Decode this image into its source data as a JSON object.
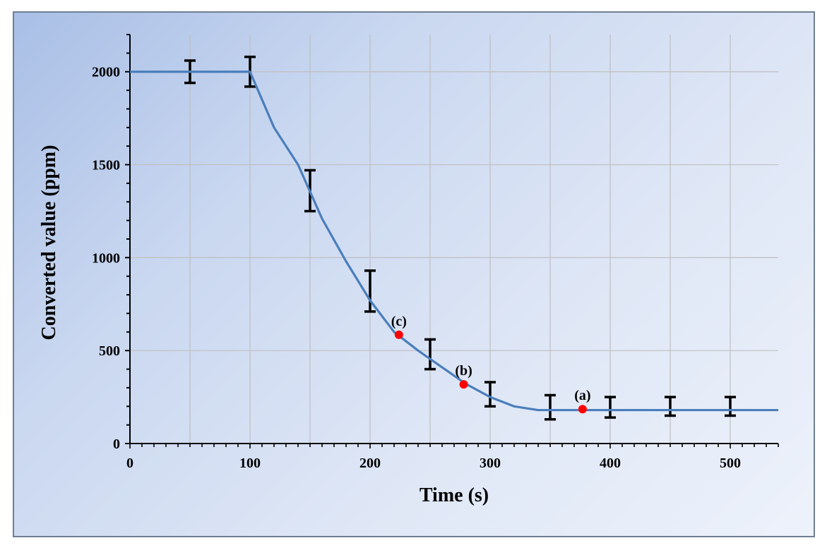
{
  "chart_data": {
    "type": "line",
    "xlabel": "Time (s)",
    "ylabel": "Converted value (ppm)",
    "xlim": [
      0,
      540
    ],
    "ylim": [
      0,
      2200
    ],
    "xticks": [
      0,
      100,
      200,
      300,
      400,
      500
    ],
    "yticks": [
      0,
      500,
      1000,
      1500,
      2000
    ],
    "x_tick_labels": [
      "0",
      "100",
      "200",
      "300",
      "400",
      "500"
    ],
    "y_tick_labels": [
      "0",
      "500",
      "1000",
      "1500",
      "2000"
    ],
    "grid": true,
    "line_color": "#4a7ebb",
    "series": [
      {
        "x": [
          0,
          50,
          100,
          120,
          140,
          160,
          180,
          200,
          220,
          240,
          260,
          280,
          300,
          320,
          340,
          360,
          400,
          450,
          500,
          540
        ],
        "y": [
          2000,
          2000,
          2000,
          1700,
          1500,
          1210,
          980,
          770,
          600,
          500,
          410,
          320,
          250,
          200,
          180,
          180,
          180,
          180,
          180,
          180
        ]
      }
    ],
    "error_bars": [
      {
        "x": 50,
        "low": 1940,
        "high": 2060
      },
      {
        "x": 100,
        "low": 1920,
        "high": 2080
      },
      {
        "x": 150,
        "low": 1250,
        "high": 1470
      },
      {
        "x": 200,
        "low": 710,
        "high": 930
      },
      {
        "x": 250,
        "low": 400,
        "high": 560
      },
      {
        "x": 300,
        "low": 200,
        "high": 330
      },
      {
        "x": 350,
        "low": 130,
        "high": 260
      },
      {
        "x": 400,
        "low": 140,
        "high": 250
      },
      {
        "x": 450,
        "low": 150,
        "high": 250
      },
      {
        "x": 500,
        "low": 150,
        "high": 250
      }
    ],
    "error_bar_color": "#000000",
    "marker_color": "#ff0000",
    "annotations": [
      {
        "label": "(c)",
        "x": 224,
        "y": 585
      },
      {
        "label": "(b)",
        "x": 278,
        "y": 318
      },
      {
        "label": "(a)",
        "x": 377,
        "y": 185
      }
    ]
  }
}
